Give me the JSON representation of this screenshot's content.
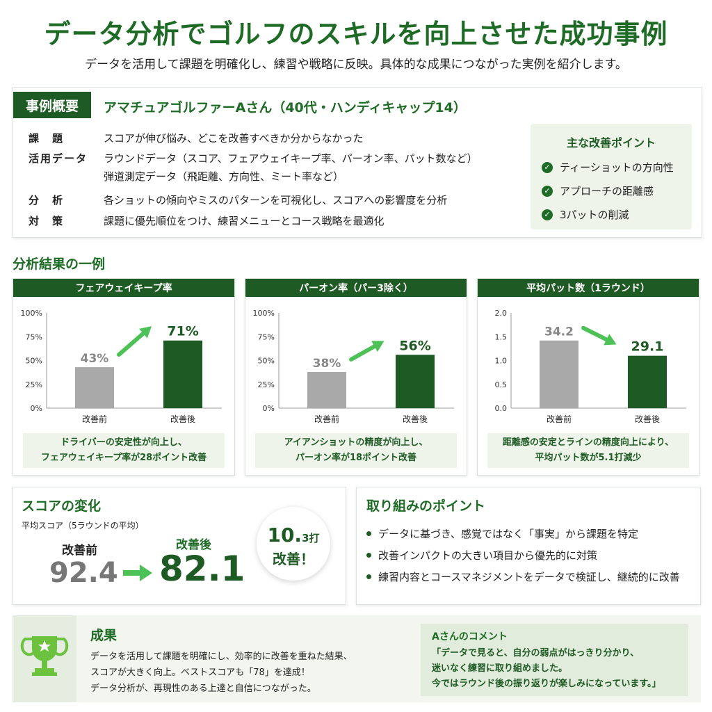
{
  "header": {
    "title": "データ分析でゴルフのスキルを向上させた成功事例",
    "subtitle": "データを活用して課題を明確化し、練習や戦略に反映。具体的な成果につながった実例を紹介します。"
  },
  "overview": {
    "tag": "事例概要",
    "case": "アマチュアゴルファーAさん（40代・ハンディキャップ14）",
    "rows": [
      {
        "label": "課　題",
        "text": "スコアが伸び悩み、どこを改善すべきか分からなかった"
      },
      {
        "label": "活用データ",
        "text": "ラウンドデータ（スコア、フェアウェイキープ率、パーオン率、パット数など）"
      },
      {
        "label": "",
        "text": "弾道測定データ（飛距離、方向性、ミート率など）"
      },
      {
        "label": "分　析",
        "text": "各ショットの傾向やミスのパターンを可視化し、スコアへの影響度を分析"
      },
      {
        "label": "対　策",
        "text": "課題に優先順位をつけ、練習メニューとコース戦略を最適化"
      }
    ],
    "points_title": "主な改善ポイント",
    "points": [
      "ティーショットの方向性",
      "アプローチの距離感",
      "3パットの削減"
    ]
  },
  "analysis_title": "分析結果の一例",
  "chart_data": [
    {
      "type": "bar",
      "title": "フェアウェイキープ率",
      "categories": [
        "改善前",
        "改善後"
      ],
      "values": [
        43,
        71
      ],
      "value_labels": [
        "43%",
        "71%"
      ],
      "yticks": [
        "100%",
        "75%",
        "50%",
        "25%",
        "0%"
      ],
      "ylim": [
        0,
        100
      ],
      "note": [
        "ドライバーの安定性が向上し、",
        "フェアウェイキープ率が28ポイント改善"
      ]
    },
    {
      "type": "bar",
      "title": "パーオン率（パー3除く）",
      "categories": [
        "改善前",
        "改善後"
      ],
      "values": [
        38,
        56
      ],
      "value_labels": [
        "38%",
        "56%"
      ],
      "yticks": [
        "100%",
        "75%",
        "50%",
        "25%",
        "0%"
      ],
      "ylim": [
        0,
        100
      ],
      "note": [
        "アイアンショットの精度が向上し、",
        "パーオン率が18ポイント改善"
      ]
    },
    {
      "type": "bar",
      "title": "平均パット数（1ラウンド）",
      "categories": [
        "改善前",
        "改善後"
      ],
      "values": [
        34.2,
        29.1
      ],
      "value_labels": [
        "34.2",
        "29.1"
      ],
      "yticks": [
        "2.0",
        "1.5",
        "1.0",
        "0.5",
        "0.0"
      ],
      "ylim": [
        0,
        2.0
      ],
      "bar_fraction": [
        0.71,
        0.55
      ],
      "note": [
        "距離感の安定とラインの精度向上により、",
        "平均パット数が5.1打減少"
      ]
    }
  ],
  "score": {
    "title": "スコアの変化",
    "caption": "平均スコア（5ラウンドの平均）",
    "before_label": "改善前",
    "before_value": "92.4",
    "after_label": "改善後",
    "after_value": "82.1",
    "diff_big": "10.",
    "diff_small": "3打",
    "diff_text": "改善！"
  },
  "approach": {
    "title": "取り組みのポイント",
    "items": [
      "データに基づき、感覚ではなく「事実」から課題を特定",
      "改善インパクトの大きい項目から優先的に対策",
      "練習内容とコースマネジメントをデータで検証し、継続的に改善"
    ]
  },
  "result": {
    "title": "成果",
    "lines": [
      "データを活用して課題を明確にし、効率的に改善を重ねた結果、",
      "スコアが大きく向上。ベストスコアも「78」を達成！",
      "データ分析が、再現性のある上達と自信につながった。"
    ],
    "comment_title": "Aさんのコメント",
    "comment_lines": [
      "「データで見ると、自分の弱点がはっきり分かり、",
      "迷いなく練習に取り組めました。",
      "今ではラウンド後の振り返りが楽しみになっています。」"
    ]
  },
  "colors": {
    "accent": "#1e5a23",
    "gray_bar": "#a9a9a9",
    "arrow": "#4cc256",
    "light_bg": "#eef4ea"
  }
}
